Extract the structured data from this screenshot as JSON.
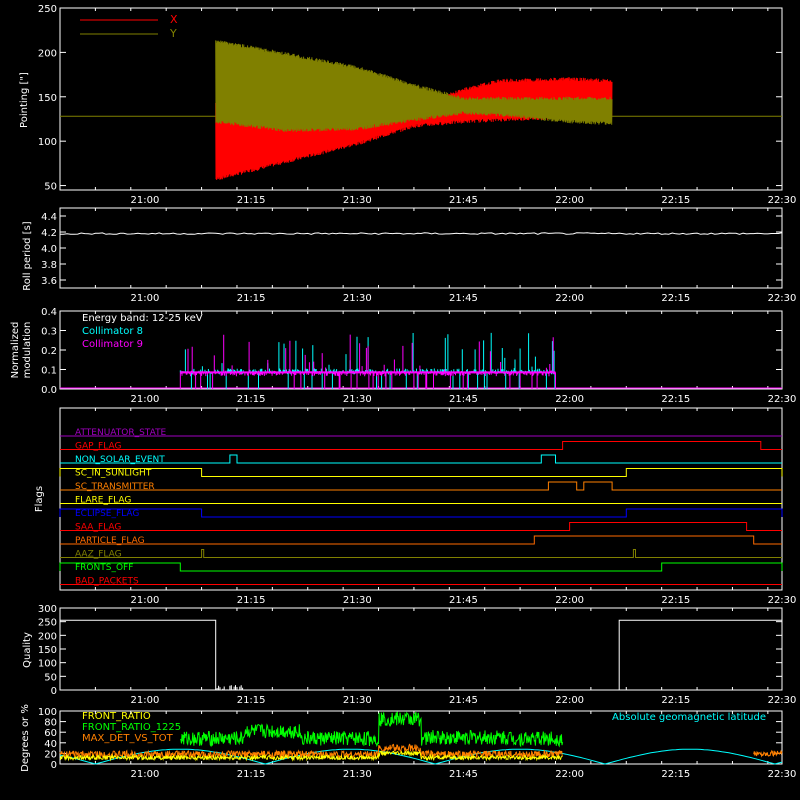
{
  "x_ticks": [
    "21:00",
    "21:15",
    "21:30",
    "21:45",
    "22:00",
    "22:15",
    "22:30"
  ],
  "colors": {
    "bg": "#000000",
    "axes": "#ffffff",
    "red": "#ff0000",
    "olive": "#808000",
    "cyan": "#00ffff",
    "magenta": "#ff00ff",
    "green": "#00ff00",
    "orange": "#ff8000",
    "yellow": "#ffff00",
    "blue": "#0000ff",
    "purple": "#a000c0",
    "darkorange": "#ff6a00"
  },
  "chart_data": [
    {
      "id": "pointing",
      "type": "line",
      "ylabel": "Pointing [\"]",
      "y_ticks": [
        "50",
        "100",
        "150",
        "200",
        "250"
      ],
      "ylim": [
        45,
        250
      ],
      "xlim": [
        "20:48",
        "22:30"
      ],
      "series": [
        {
          "name": "X",
          "color": "#ff0000",
          "baseline": 128,
          "active": [
            "21:10",
            "22:06"
          ],
          "envelope": [
            [
              "21:10",
              55,
              145
            ],
            [
              "21:20",
              75,
              140
            ],
            [
              "21:30",
              95,
              140
            ],
            [
              "21:38",
              115,
              140
            ],
            [
              "21:45",
              120,
              160
            ],
            [
              "21:50",
              122,
              170
            ],
            [
              "22:00",
              125,
              172
            ],
            [
              "22:06",
              125,
              170
            ]
          ]
        },
        {
          "name": "Y",
          "color": "#808000",
          "baseline": 128,
          "active": [
            "21:10",
            "22:06"
          ],
          "envelope": [
            [
              "21:10",
              120,
              215
            ],
            [
              "21:20",
              110,
              200
            ],
            [
              "21:30",
              112,
              185
            ],
            [
              "21:38",
              122,
              165
            ],
            [
              "21:45",
              130,
              150
            ],
            [
              "21:50",
              128,
              150
            ],
            [
              "22:00",
              120,
              150
            ],
            [
              "22:06",
              118,
              150
            ]
          ]
        }
      ],
      "legend": "top-left"
    },
    {
      "id": "roll",
      "type": "line",
      "ylabel": "Roll period [s]",
      "y_ticks": [
        "3.6",
        "3.8",
        "4.0",
        "4.2",
        "4.4"
      ],
      "ylim": [
        3.5,
        4.5
      ],
      "xlim": [
        "20:48",
        "22:30"
      ],
      "series": [
        {
          "values_constant": 4.18,
          "color": "#ffffff"
        }
      ]
    },
    {
      "id": "modulation",
      "type": "bar",
      "ylabel": "Normalized modulation",
      "y_ticks": [
        "0.0",
        "0.1",
        "0.2",
        "0.3",
        "0.4"
      ],
      "ylim": [
        0,
        0.4
      ],
      "xlim": [
        "20:48",
        "22:30"
      ],
      "annotation": "Energy band: 12-25 keV",
      "series": [
        {
          "name": "Collimator 8",
          "color": "#00ffff",
          "active": [
            "21:05",
            "21:58"
          ],
          "typical": 0.09
        },
        {
          "name": "Collimator 9",
          "color": "#ff00ff",
          "active": [
            "21:05",
            "21:58"
          ],
          "typical": 0.08
        }
      ]
    },
    {
      "id": "flags",
      "type": "line",
      "ylabel": "Flags",
      "xlim": [
        "20:48",
        "22:30"
      ],
      "series": [
        {
          "name": "ATTENUATOR_STATE",
          "color": "#a000c0",
          "steps": []
        },
        {
          "name": "GAP_FLAG",
          "color": "#ff0000",
          "steps": [
            [
              "21:59",
              "22:27"
            ]
          ]
        },
        {
          "name": "NON_SOLAR_EVENT",
          "color": "#00ffff",
          "steps": [
            [
              "21:12",
              "21:13"
            ],
            [
              "21:56",
              "21:58"
            ]
          ]
        },
        {
          "name": "SC_IN_SUNLIGHT",
          "color": "#ffff00",
          "steps": [
            [
              "20:48",
              "21:08"
            ],
            [
              "22:08",
              "22:30"
            ]
          ]
        },
        {
          "name": "SC_TRANSMITTER",
          "color": "#ff8000",
          "steps": [
            [
              "21:57",
              "22:01"
            ],
            [
              "22:02",
              "22:06"
            ]
          ]
        },
        {
          "name": "FLARE_FLAG",
          "color": "#ffff00",
          "steps": []
        },
        {
          "name": "ECLIPSE_FLAG",
          "color": "#0000ff",
          "steps": [
            [
              "20:48",
              "21:08"
            ],
            [
              "22:08",
              "22:30"
            ]
          ]
        },
        {
          "name": "SAA_FLAG",
          "color": "#ff0000",
          "steps": [
            [
              "22:00",
              "22:25"
            ]
          ]
        },
        {
          "name": "PARTICLE_FLAG",
          "color": "#ff6a00",
          "steps": [
            [
              "21:55",
              "22:26"
            ]
          ]
        },
        {
          "name": "AAZ_FLAG",
          "color": "#808000",
          "steps": [
            [
              "21:08",
              "21:08.3"
            ],
            [
              "22:09",
              "22:09.3"
            ]
          ]
        },
        {
          "name": "FRONTS_OFF",
          "color": "#00ff00",
          "steps": [
            [
              "20:48",
              "21:05"
            ],
            [
              "22:13",
              "22:30"
            ]
          ]
        },
        {
          "name": "BAD_PACKETS",
          "color": "#ff0000",
          "steps": []
        }
      ]
    },
    {
      "id": "quality",
      "type": "line",
      "ylabel": "Quality",
      "y_ticks": [
        "0",
        "50",
        "100",
        "150",
        "200",
        "250",
        "300"
      ],
      "ylim": [
        0,
        300
      ],
      "xlim": [
        "20:48",
        "22:30"
      ],
      "series": [
        {
          "color": "#ffffff",
          "points": [
            [
              "20:48",
              255
            ],
            [
              "21:10",
              255
            ],
            [
              "21:10",
              0
            ],
            [
              "22:07",
              0
            ],
            [
              "22:07",
              255
            ],
            [
              "22:30",
              255
            ]
          ]
        }
      ]
    },
    {
      "id": "ratios",
      "type": "line",
      "ylabel": "Degrees or %",
      "y_ticks": [
        "0",
        "20",
        "40",
        "60",
        "80",
        "100"
      ],
      "ylim": [
        0,
        100
      ],
      "xlim": [
        "20:48",
        "22:30"
      ],
      "annotation": "Absolute geomagnetic latitude",
      "series": [
        {
          "name": "FRONT_RATIO",
          "color": "#ffff00",
          "active": [
            "20:48",
            "21:59"
          ]
        },
        {
          "name": "FRONT_RATIO_1225",
          "color": "#00ff00",
          "active": [
            "21:05",
            "21:59"
          ]
        },
        {
          "name": "MAX_DET_VS_TOT",
          "color": "#ff8000",
          "active": [
            [
              "20:48",
              "21:59"
            ],
            [
              "22:26",
              "22:30"
            ]
          ]
        },
        {
          "name": "Absolute geomagnetic latitude",
          "color": "#00ffff"
        }
      ]
    }
  ]
}
